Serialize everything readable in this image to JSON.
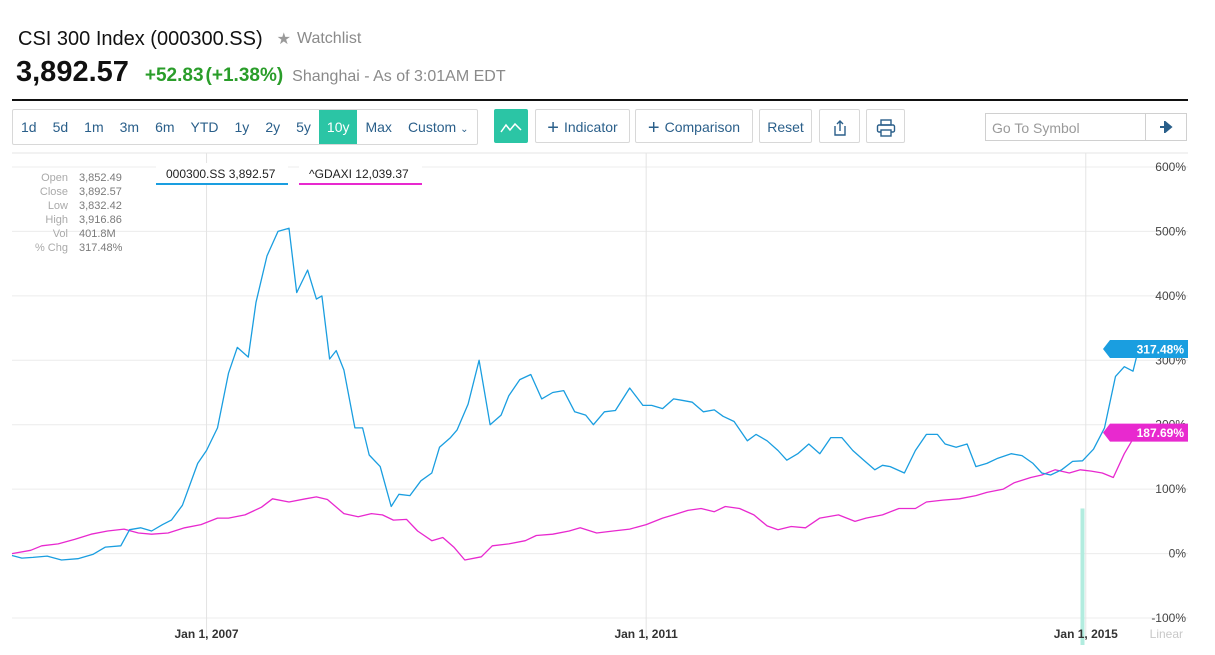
{
  "header": {
    "title": "CSI 300 Index (000300.SS)",
    "watchlist_label": "Watchlist",
    "price": "3,892.57",
    "change": "+52.83",
    "change_pct": "(+1.38%)",
    "as_of": "Shanghai - As of 3:01AM EDT",
    "up_color": "#2a9d2a"
  },
  "toolbar": {
    "ranges": [
      "1d",
      "5d",
      "1m",
      "3m",
      "6m",
      "YTD",
      "1y",
      "2y",
      "5y",
      "10y",
      "Max"
    ],
    "active_range": "10y",
    "custom_label": "Custom",
    "indicator_label": "Indicator",
    "comparison_label": "Comparison",
    "reset_label": "Reset",
    "search_placeholder": "Go To Symbol",
    "accent": "#2bc5a5"
  },
  "ohlc": {
    "open_label": "Open",
    "open": "3,852.49",
    "close_label": "Close",
    "close": "3,892.57",
    "low_label": "Low",
    "low": "3,832.42",
    "high_label": "High",
    "high": "3,916.86",
    "vol_label": "Vol",
    "vol": "401.8M",
    "chg_label": "% Chg",
    "chg": "317.48%"
  },
  "legend": {
    "main": "000300.SS 3,892.57",
    "comparison": "^GDAXI 12,039.37"
  },
  "chart_data": {
    "type": "line",
    "y_tick_labels": [
      "600%",
      "500%",
      "400%",
      "300%",
      "200%",
      "100%",
      "0%",
      "-100%"
    ],
    "y_tick_values": [
      600,
      500,
      400,
      300,
      200,
      100,
      0,
      -100
    ],
    "ylim": [
      -100,
      600
    ],
    "x_tick_labels": [
      "Jan 1, 2007",
      "Jan 1, 2011",
      "Jan 1, 2015"
    ],
    "x_tick_values": [
      2007.0,
      2011.0,
      2015.0
    ],
    "xlim": [
      2005.23,
      2015.93
    ],
    "scale_label": "Linear",
    "series": [
      {
        "name": "000300.SS",
        "color": "#1a9ee0",
        "end_label": "317.48%",
        "end_value": 317.48,
        "x": [
          2005.23,
          2005.32,
          2005.42,
          2005.55,
          2005.68,
          2005.83,
          2005.97,
          2006.08,
          2006.22,
          2006.3,
          2006.4,
          2006.5,
          2006.6,
          2006.68,
          2006.78,
          2006.92,
          2007.0,
          2007.1,
          2007.2,
          2007.28,
          2007.38,
          2007.45,
          2007.55,
          2007.65,
          2007.75,
          2007.82,
          2007.92,
          2008.0,
          2008.05,
          2008.12,
          2008.18,
          2008.25,
          2008.35,
          2008.42,
          2008.48,
          2008.58,
          2008.68,
          2008.75,
          2008.85,
          2008.95,
          2009.05,
          2009.12,
          2009.22,
          2009.28,
          2009.38,
          2009.48,
          2009.58,
          2009.68,
          2009.75,
          2009.85,
          2009.95,
          2010.05,
          2010.15,
          2010.25,
          2010.35,
          2010.45,
          2010.52,
          2010.62,
          2010.72,
          2010.85,
          2010.97,
          2011.05,
          2011.15,
          2011.25,
          2011.32,
          2011.42,
          2011.52,
          2011.62,
          2011.7,
          2011.8,
          2011.92,
          2012.0,
          2012.1,
          2012.2,
          2012.28,
          2012.38,
          2012.48,
          2012.58,
          2012.68,
          2012.78,
          2012.88,
          2012.98,
          2013.08,
          2013.15,
          2013.22,
          2013.35,
          2013.45,
          2013.55,
          2013.65,
          2013.72,
          2013.82,
          2013.92,
          2014.0,
          2014.1,
          2014.2,
          2014.32,
          2014.42,
          2014.52,
          2014.6,
          2014.68,
          2014.78,
          2014.88,
          2014.97,
          2015.07,
          2015.17,
          2015.27,
          2015.35,
          2015.43,
          2015.48
        ],
        "y": [
          -3,
          -7,
          -6,
          -4,
          -10,
          -8,
          -1,
          10,
          12,
          37,
          40,
          35,
          45,
          52,
          75,
          140,
          160,
          195,
          280,
          320,
          305,
          390,
          462,
          500,
          505,
          405,
          440,
          395,
          400,
          302,
          315,
          285,
          195,
          195,
          153,
          135,
          73,
          92,
          90,
          113,
          125,
          165,
          180,
          192,
          232,
          300,
          200,
          215,
          245,
          270,
          278,
          240,
          250,
          253,
          220,
          215,
          200,
          220,
          222,
          257,
          230,
          230,
          225,
          240,
          238,
          235,
          220,
          223,
          213,
          205,
          175,
          185,
          175,
          160,
          145,
          155,
          170,
          155,
          180,
          180,
          160,
          145,
          130,
          137,
          135,
          125,
          160,
          185,
          185,
          170,
          165,
          170,
          135,
          140,
          148,
          155,
          152,
          140,
          125,
          122,
          130,
          143,
          144,
          162,
          195,
          275,
          290,
          283,
          317.48
        ]
      },
      {
        "name": "^GDAXI",
        "color": "#e829cf",
        "end_label": "187.69%",
        "end_value": 187.69,
        "x": [
          2005.23,
          2005.4,
          2005.5,
          2005.65,
          2005.8,
          2005.95,
          2006.1,
          2006.25,
          2006.38,
          2006.5,
          2006.65,
          2006.8,
          2006.95,
          2007.1,
          2007.2,
          2007.35,
          2007.5,
          2007.6,
          2007.75,
          2007.9,
          2008.0,
          2008.1,
          2008.25,
          2008.38,
          2008.5,
          2008.6,
          2008.7,
          2008.82,
          2008.92,
          2009.05,
          2009.15,
          2009.25,
          2009.35,
          2009.5,
          2009.6,
          2009.75,
          2009.9,
          2010.0,
          2010.15,
          2010.3,
          2010.4,
          2010.55,
          2010.7,
          2010.85,
          2011.0,
          2011.15,
          2011.25,
          2011.38,
          2011.5,
          2011.62,
          2011.72,
          2011.85,
          2011.98,
          2012.1,
          2012.2,
          2012.32,
          2012.45,
          2012.58,
          2012.75,
          2012.9,
          2013.0,
          2013.15,
          2013.3,
          2013.45,
          2013.55,
          2013.7,
          2013.85,
          2014.0,
          2014.1,
          2014.25,
          2014.35,
          2014.5,
          2014.6,
          2014.72,
          2014.85,
          2014.95,
          2015.05,
          2015.15,
          2015.25,
          2015.35,
          2015.43,
          2015.48
        ],
        "y": [
          0,
          5,
          12,
          15,
          22,
          30,
          35,
          38,
          32,
          30,
          32,
          40,
          45,
          55,
          55,
          60,
          72,
          85,
          80,
          85,
          88,
          84,
          62,
          57,
          62,
          60,
          52,
          53,
          35,
          20,
          25,
          10,
          -10,
          -5,
          12,
          15,
          20,
          28,
          30,
          35,
          40,
          32,
          35,
          38,
          45,
          55,
          60,
          67,
          70,
          65,
          73,
          70,
          60,
          43,
          37,
          42,
          40,
          55,
          60,
          50,
          55,
          60,
          70,
          70,
          80,
          83,
          85,
          90,
          95,
          100,
          110,
          118,
          122,
          130,
          125,
          130,
          128,
          125,
          118,
          155,
          178,
          187.69
        ]
      }
    ]
  }
}
